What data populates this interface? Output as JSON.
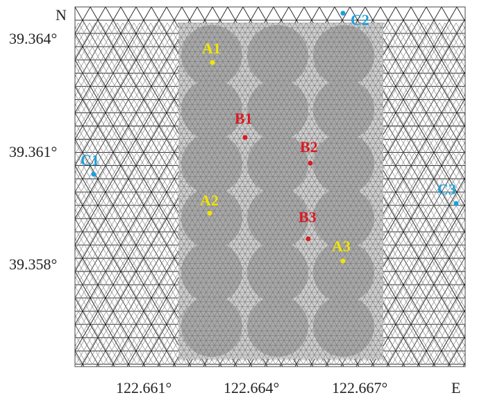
{
  "map": {
    "north_label": "N",
    "east_label": "E",
    "lat_ticks": [
      "39.364°",
      "39.361°",
      "39.358°"
    ],
    "lon_ticks": [
      "122.661°",
      "122.664°",
      "122.667°"
    ],
    "colors": {
      "mesh": "#1a1a1a",
      "fine_mesh": "#7a7a7a",
      "site_A": "#f2e600",
      "site_B": "#d81b23",
      "site_C": "#1aa0e0"
    },
    "points": [
      {
        "id": "A1",
        "group": "A",
        "label": "A1"
      },
      {
        "id": "A2",
        "group": "A",
        "label": "A2"
      },
      {
        "id": "A3",
        "group": "A",
        "label": "A3"
      },
      {
        "id": "B1",
        "group": "B",
        "label": "B1"
      },
      {
        "id": "B2",
        "group": "B",
        "label": "B2"
      },
      {
        "id": "B3",
        "group": "B",
        "label": "B3"
      },
      {
        "id": "C1",
        "group": "C",
        "label": "C1"
      },
      {
        "id": "C2",
        "group": "C",
        "label": "C2"
      },
      {
        "id": "C3",
        "group": "C",
        "label": "C3"
      }
    ]
  }
}
